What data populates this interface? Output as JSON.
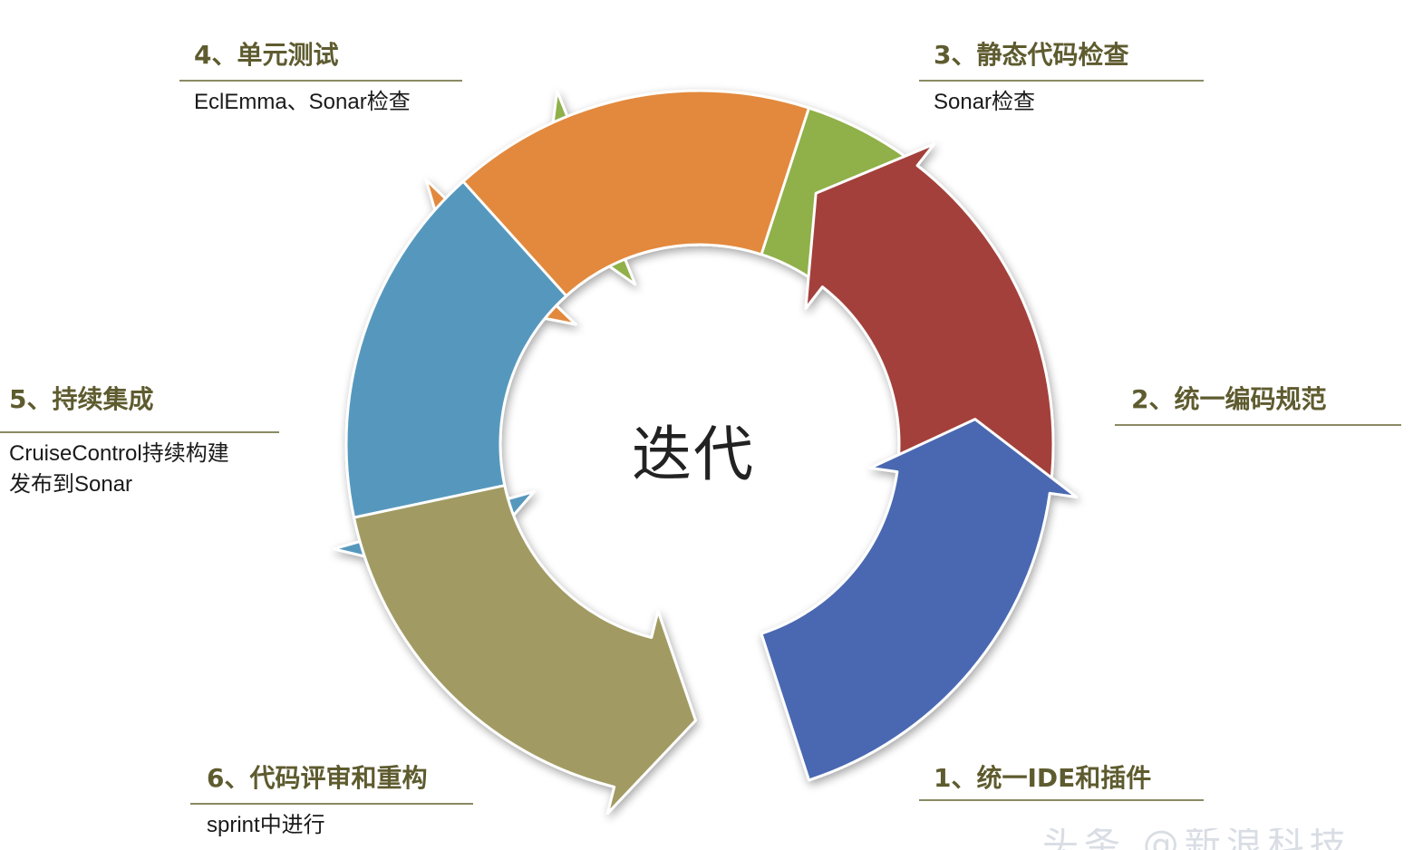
{
  "center_label": "迭代",
  "colors": {
    "step1": "#4a67b1",
    "step2": "#a3403b",
    "step3": "#90b049",
    "step4": "#e2893c",
    "step5": "#5698bd",
    "step6": "#a19b64",
    "title_text": "#5e5b2f",
    "rule": "#8a8a64"
  },
  "steps": [
    {
      "title": "1、统一IDE和插件",
      "desc_lines": []
    },
    {
      "title": "2、统一编码规范",
      "desc_lines": []
    },
    {
      "title": "3、静态代码检查",
      "desc_lines": [
        "Sonar检查"
      ]
    },
    {
      "title": "4、单元测试",
      "desc_lines": [
        "EclEmma、Sonar检查"
      ]
    },
    {
      "title": "5、持续集成",
      "desc_lines": [
        "CruiseControl持续构建",
        "发布到Sonar"
      ]
    },
    {
      "title": "6、代码评审和重构",
      "desc_lines": [
        "sprint中进行"
      ]
    }
  ],
  "watermark": "头条 @新浪科技"
}
